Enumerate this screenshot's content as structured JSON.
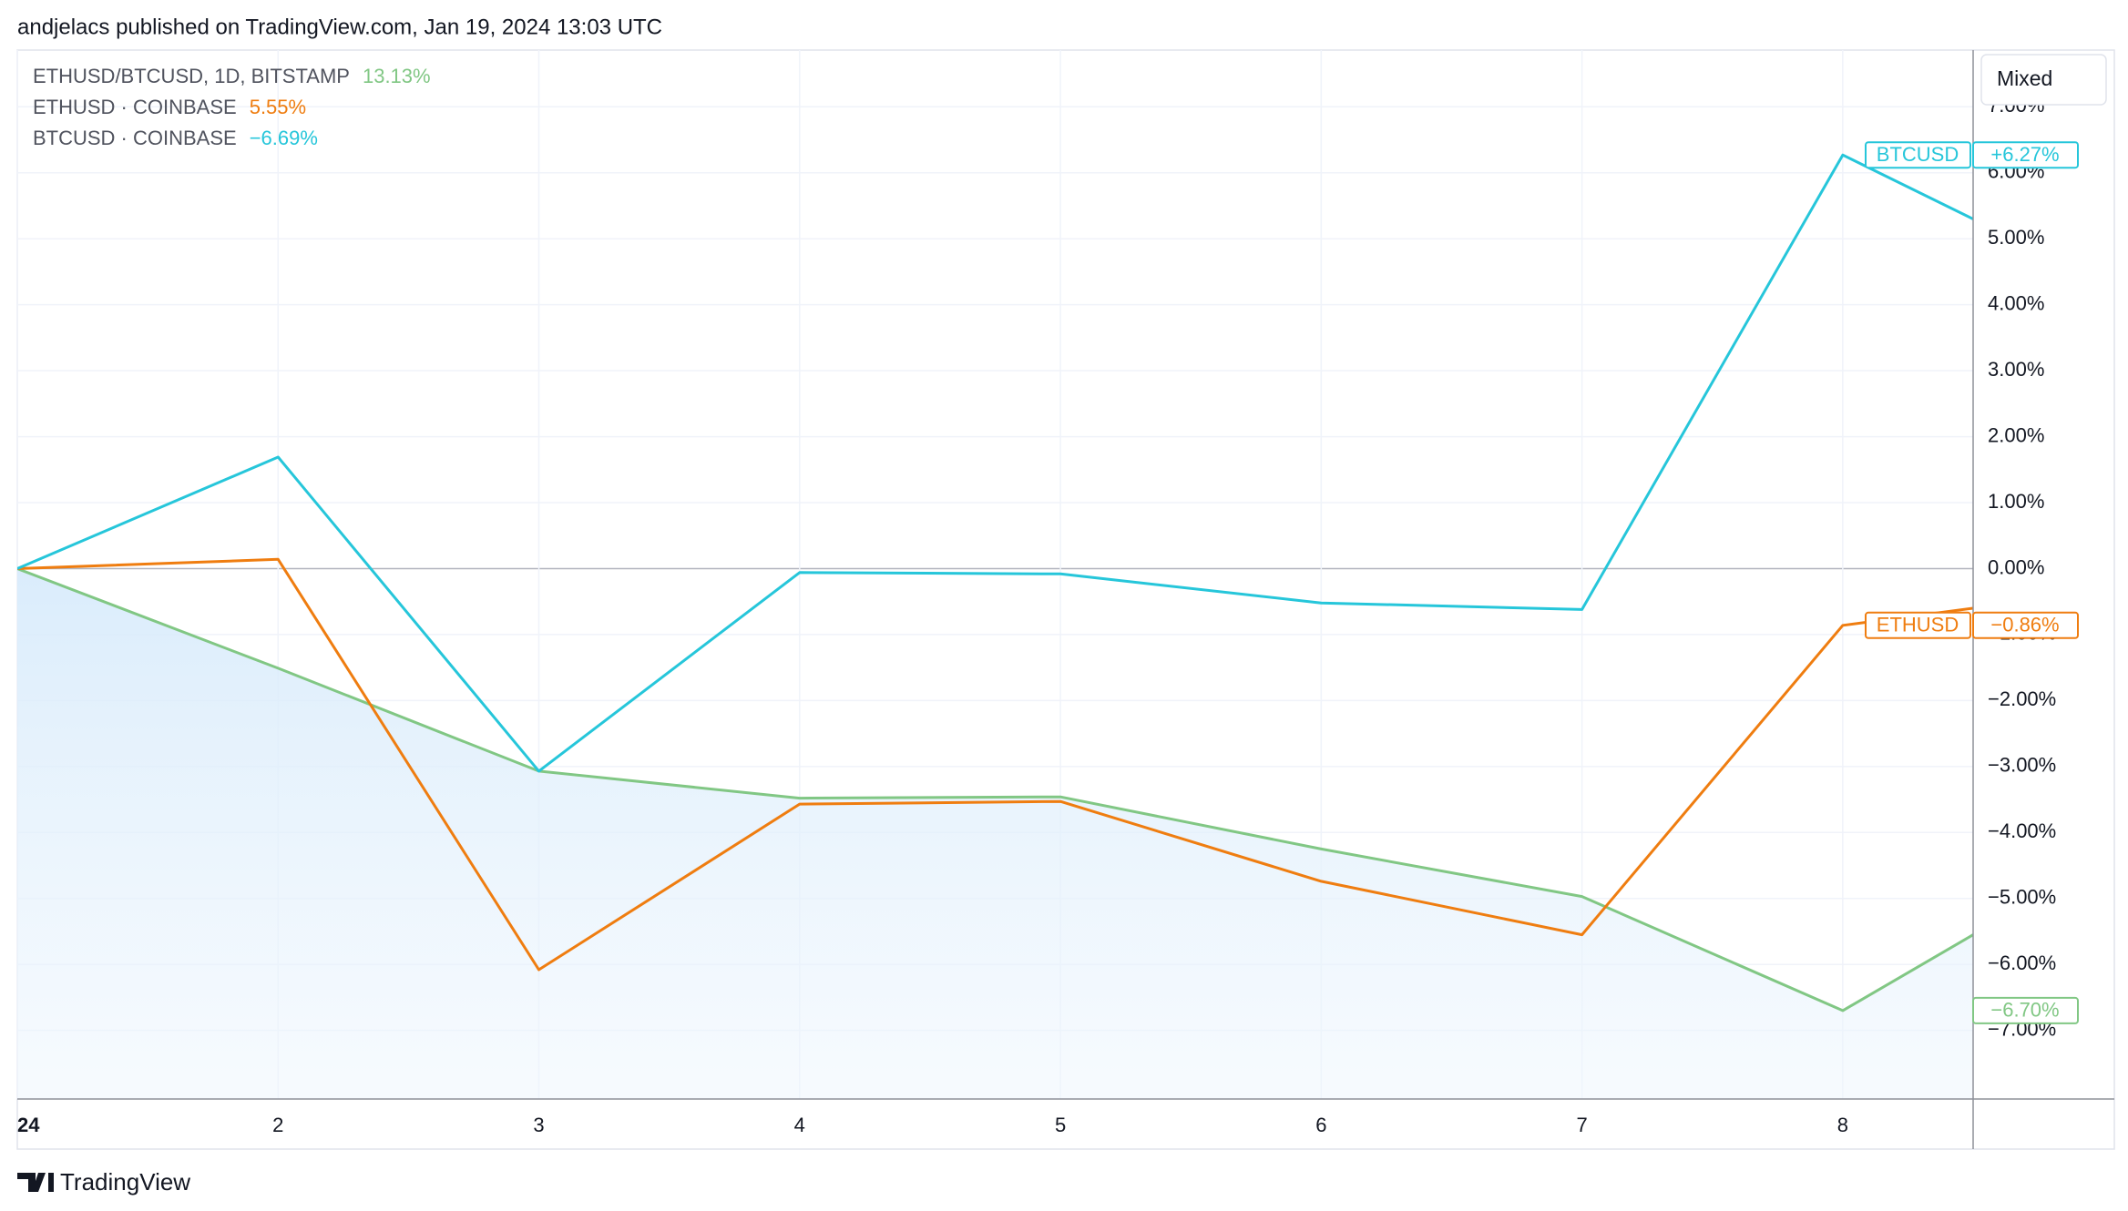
{
  "header": "andjelacs published on TradingView.com, Jan 19, 2024 13:03 UTC",
  "button": "Mixed",
  "brand": "TradingView",
  "chart_data": {
    "type": "line",
    "x": [
      0,
      1,
      2,
      3,
      4,
      5,
      6,
      7,
      7.5
    ],
    "xlim": [
      0,
      7.5
    ],
    "xticks": [
      {
        "value": 0,
        "label": "24"
      },
      {
        "value": 1,
        "label": "2"
      },
      {
        "value": 2,
        "label": "3"
      },
      {
        "value": 3,
        "label": "4"
      },
      {
        "value": 4,
        "label": "5"
      },
      {
        "value": 5,
        "label": "6"
      },
      {
        "value": 6,
        "label": "7"
      },
      {
        "value": 7,
        "label": "8"
      }
    ],
    "ylim": [
      -8.04,
      7.86
    ],
    "yticks": [
      {
        "value": -7,
        "label": "−7.00%"
      },
      {
        "value": -6,
        "label": "−6.00%"
      },
      {
        "value": -5,
        "label": "−5.00%"
      },
      {
        "value": -4,
        "label": "−4.00%"
      },
      {
        "value": -3,
        "label": "−3.00%"
      },
      {
        "value": -2,
        "label": "−2.00%"
      },
      {
        "value": -1,
        "label": "−1.00%"
      },
      {
        "value": 0,
        "label": "0.00%"
      },
      {
        "value": 1,
        "label": "1.00%"
      },
      {
        "value": 2,
        "label": "2.00%"
      },
      {
        "value": 3,
        "label": "3.00%"
      },
      {
        "value": 4,
        "label": "4.00%"
      },
      {
        "value": 5,
        "label": "5.00%"
      },
      {
        "value": 6,
        "label": "6.00%"
      },
      {
        "value": 7,
        "label": "7.00%"
      }
    ],
    "grid": true,
    "series": [
      {
        "name": "ETHUSD/BTCUSD, 1D, BITSTAMP",
        "change": "13.13%",
        "color": "#81c784",
        "area": true,
        "values": [
          0,
          -1.51,
          -3.07,
          -3.48,
          -3.46,
          -4.25,
          -4.97,
          -6.7,
          -5.55
        ],
        "last_label": "−6.70%"
      },
      {
        "name": "ETHUSD · COINBASE",
        "change": "5.55%",
        "color": "#ef7d10",
        "tag": "ETHUSD",
        "values": [
          0,
          0.14,
          -6.08,
          -3.57,
          -3.53,
          -4.74,
          -5.55,
          -0.86,
          -0.6
        ],
        "last_label": "−0.86%"
      },
      {
        "name": "BTCUSD · COINBASE",
        "change": "−6.69%",
        "color": "#26c6da",
        "tag": "BTCUSD",
        "values": [
          0,
          1.69,
          -3.07,
          -0.06,
          -0.08,
          -0.52,
          -0.62,
          6.27,
          5.3
        ],
        "last_label": "+6.27%"
      }
    ]
  }
}
